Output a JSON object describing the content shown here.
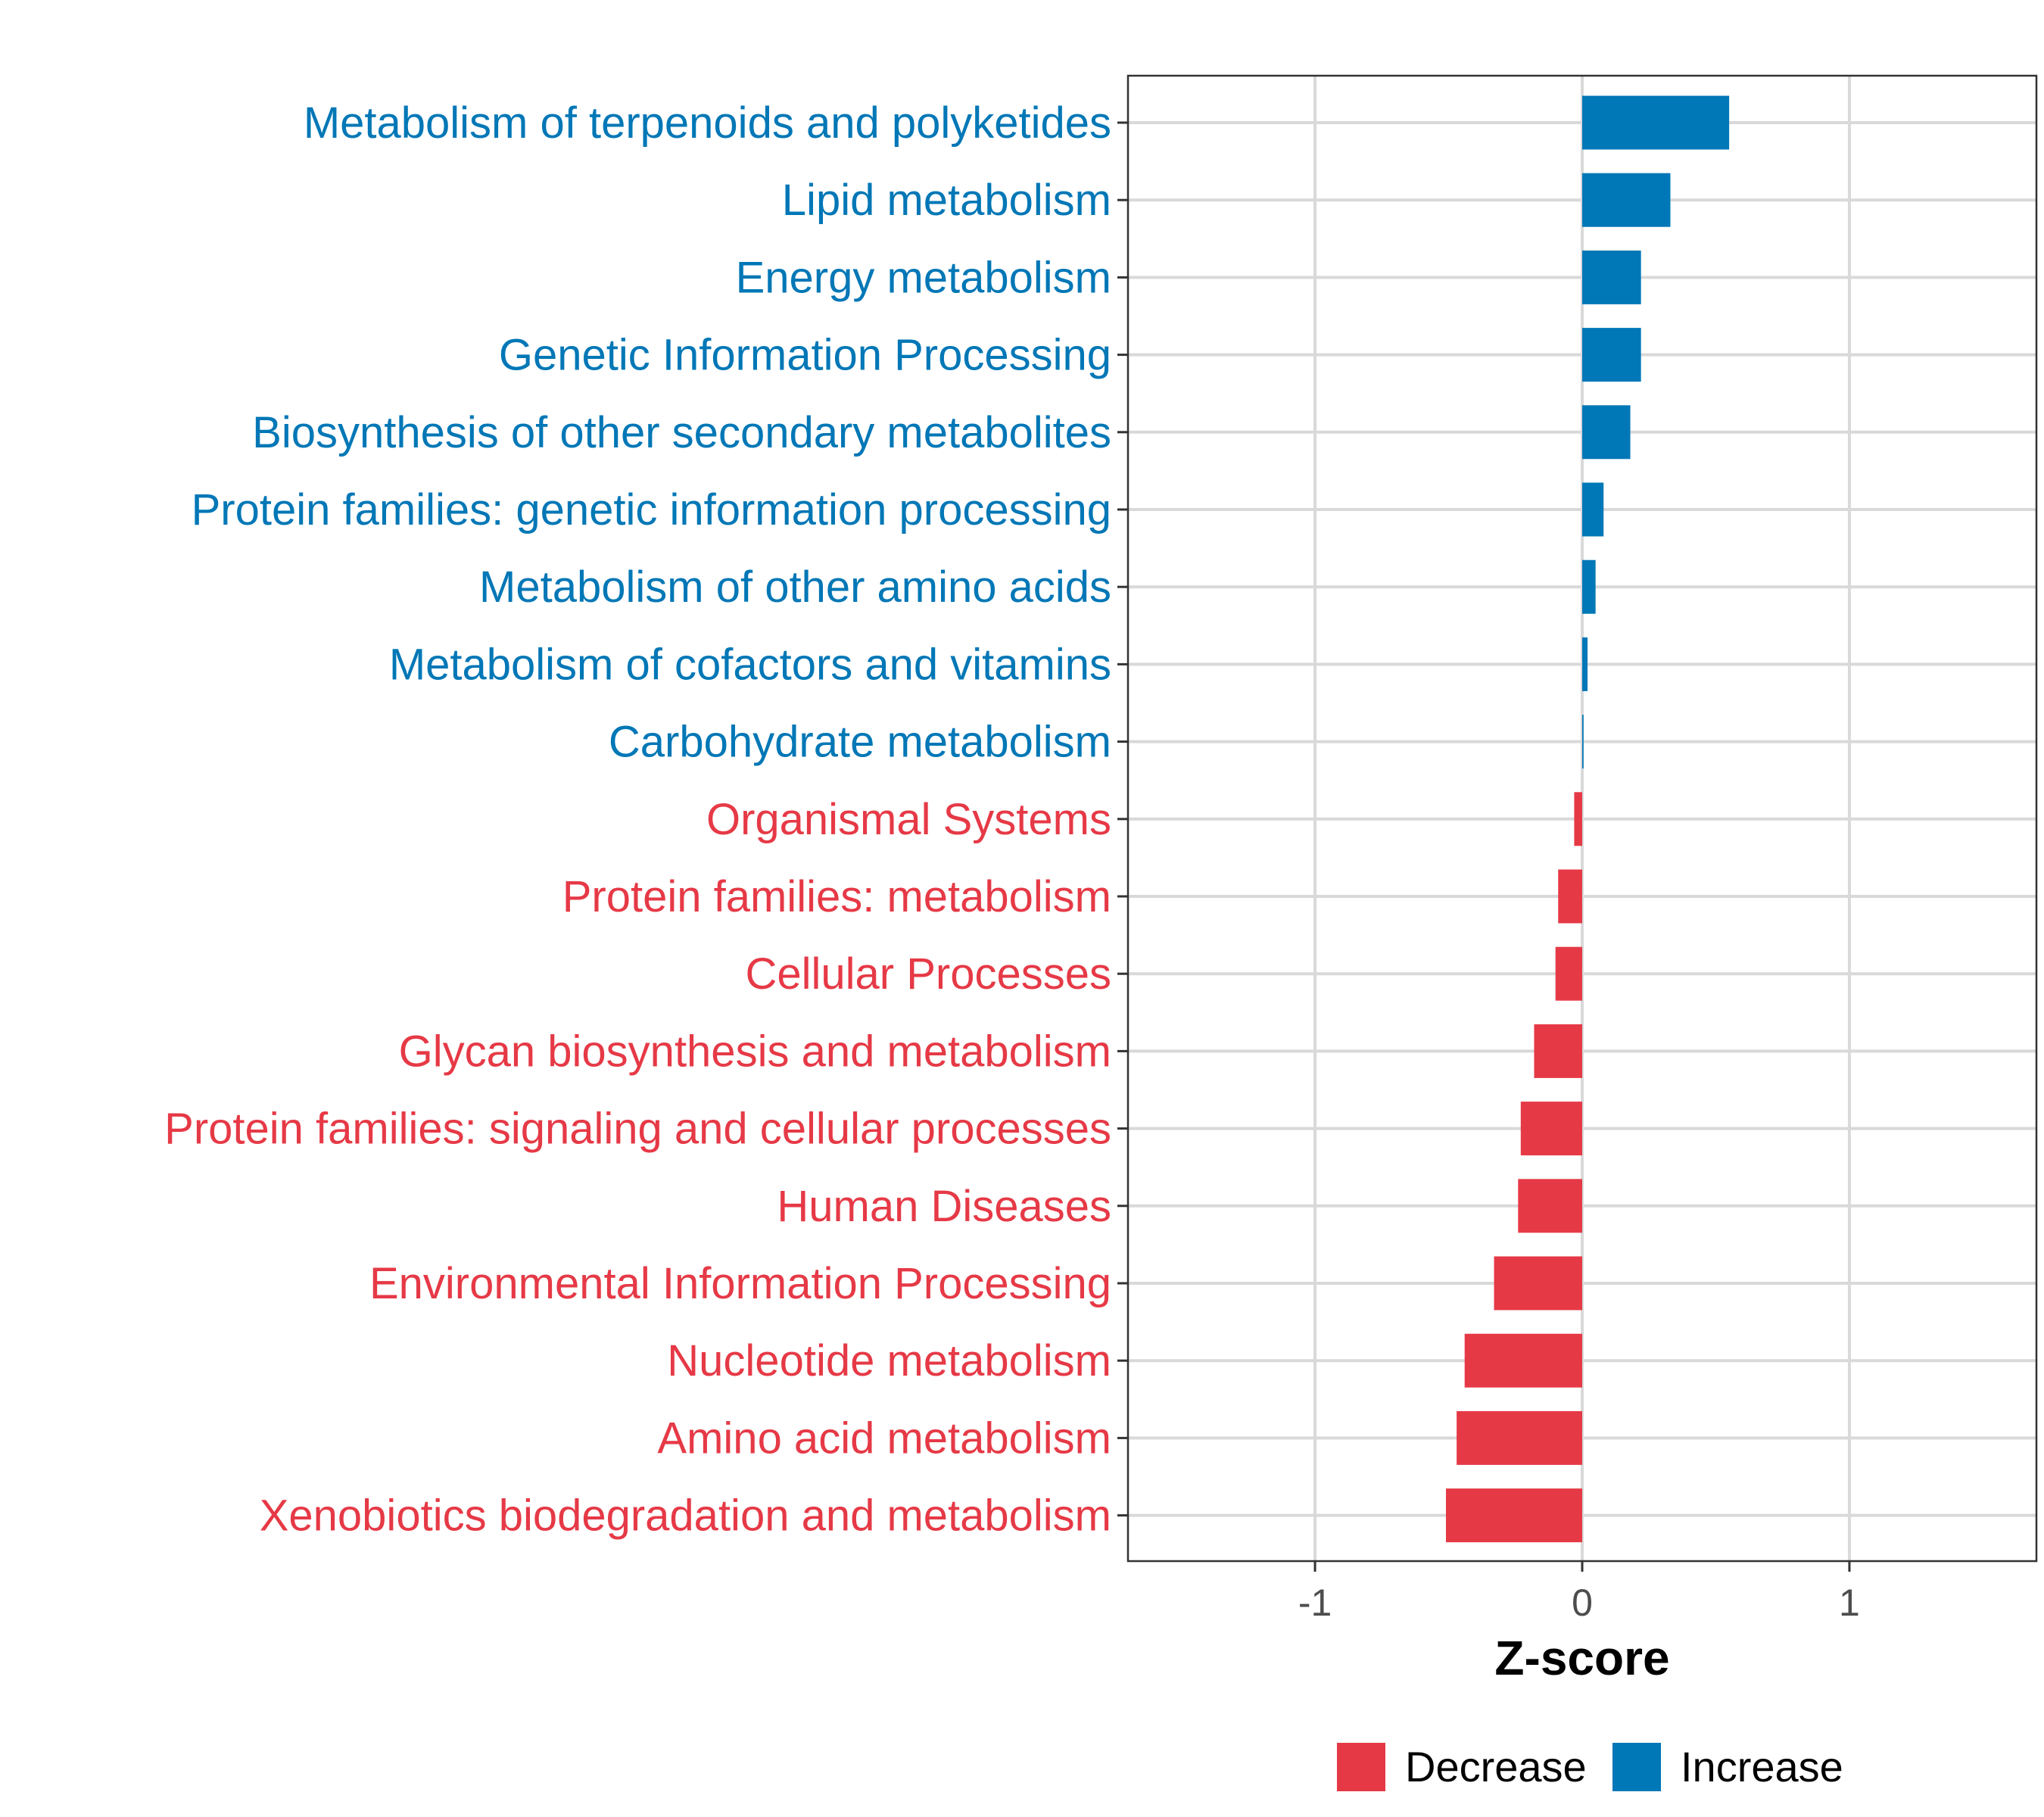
{
  "chart_data": {
    "type": "bar",
    "orientation": "horizontal",
    "xlabel": "Z-score",
    "xlim": [
      -1.7,
      1.7
    ],
    "xticks": [
      -1,
      0,
      1
    ],
    "xtick_labels": [
      "-1",
      "0",
      "1"
    ],
    "grid": true,
    "legend_position": "bottom",
    "colors": {
      "Decrease": "#e63946",
      "Increase": "#0077b6"
    },
    "legend": [
      {
        "name": "Decrease",
        "color": "#e63946"
      },
      {
        "name": "Increase",
        "color": "#0077b6"
      }
    ],
    "categories": [
      "Metabolism of terpenoids and polyketides",
      "Lipid metabolism",
      "Energy metabolism",
      "Genetic Information Processing",
      "Biosynthesis of other secondary metabolites",
      "Protein families: genetic information processing",
      "Metabolism of other amino acids",
      "Metabolism of cofactors and vitamins",
      "Carbohydrate metabolism",
      "Organismal Systems",
      "Protein families: metabolism",
      "Cellular Processes",
      "Glycan biosynthesis and metabolism",
      "Protein families: signaling and cellular processes",
      "Human Diseases",
      "Environmental Information Processing",
      "Nucleotide metabolism",
      "Amino acid metabolism",
      "Xenobiotics biodegradation and metabolism"
    ],
    "values": [
      0.55,
      0.33,
      0.22,
      0.22,
      0.18,
      0.08,
      0.05,
      0.02,
      0.005,
      -0.03,
      -0.09,
      -0.1,
      -0.18,
      -0.23,
      -0.24,
      -0.33,
      -0.44,
      -0.47,
      -0.51
    ]
  }
}
